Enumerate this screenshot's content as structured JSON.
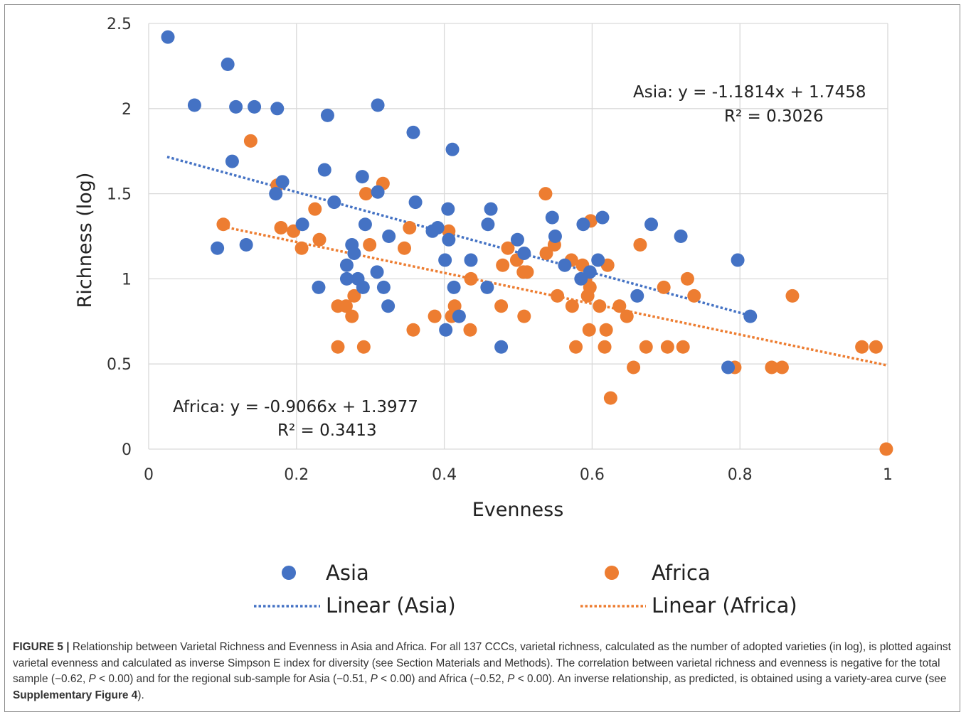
{
  "chart_data": {
    "type": "scatter",
    "xlabel": "Evenness",
    "ylabel": "Richness (log)",
    "xlim": [
      0,
      1
    ],
    "ylim": [
      0,
      2.5
    ],
    "x_ticks": [
      "0",
      "0.2",
      "0.4",
      "0.6",
      "0.8",
      "1"
    ],
    "y_ticks": [
      "0",
      "0.5",
      "1",
      "1.5",
      "2",
      "2.5"
    ],
    "grid": true,
    "legend_position": "bottom",
    "series": [
      {
        "name": "Asia",
        "color": "#4472C4",
        "points": [
          [
            0.026,
            2.42
          ],
          [
            0.062,
            2.02
          ],
          [
            0.107,
            2.26
          ],
          [
            0.118,
            2.01
          ],
          [
            0.143,
            2.01
          ],
          [
            0.174,
            2.0
          ],
          [
            0.242,
            1.96
          ],
          [
            0.31,
            2.02
          ],
          [
            0.358,
            1.86
          ],
          [
            0.411,
            1.76
          ],
          [
            0.113,
            1.69
          ],
          [
            0.238,
            1.64
          ],
          [
            0.181,
            1.57
          ],
          [
            0.172,
            1.5
          ],
          [
            0.289,
            1.6
          ],
          [
            0.31,
            1.51
          ],
          [
            0.251,
            1.45
          ],
          [
            0.361,
            1.45
          ],
          [
            0.405,
            1.41
          ],
          [
            0.463,
            1.41
          ],
          [
            0.208,
            1.32
          ],
          [
            0.293,
            1.32
          ],
          [
            0.384,
            1.28
          ],
          [
            0.391,
            1.3
          ],
          [
            0.325,
            1.25
          ],
          [
            0.406,
            1.23
          ],
          [
            0.459,
            1.32
          ],
          [
            0.546,
            1.36
          ],
          [
            0.588,
            1.32
          ],
          [
            0.614,
            1.36
          ],
          [
            0.68,
            1.32
          ],
          [
            0.72,
            1.25
          ],
          [
            0.093,
            1.18
          ],
          [
            0.132,
            1.2
          ],
          [
            0.275,
            1.2
          ],
          [
            0.278,
            1.15
          ],
          [
            0.268,
            1.08
          ],
          [
            0.401,
            1.11
          ],
          [
            0.436,
            1.11
          ],
          [
            0.499,
            1.23
          ],
          [
            0.508,
            1.15
          ],
          [
            0.55,
            1.25
          ],
          [
            0.563,
            1.08
          ],
          [
            0.608,
            1.11
          ],
          [
            0.268,
            1.0
          ],
          [
            0.283,
            1.0
          ],
          [
            0.309,
            1.04
          ],
          [
            0.23,
            0.95
          ],
          [
            0.29,
            0.95
          ],
          [
            0.318,
            0.95
          ],
          [
            0.324,
            0.84
          ],
          [
            0.413,
            0.95
          ],
          [
            0.458,
            0.95
          ],
          [
            0.585,
            1.0
          ],
          [
            0.597,
            1.04
          ],
          [
            0.661,
            0.9
          ],
          [
            0.42,
            0.78
          ],
          [
            0.402,
            0.7
          ],
          [
            0.477,
            0.6
          ],
          [
            0.797,
            1.11
          ],
          [
            0.814,
            0.78
          ],
          [
            0.784,
            0.48
          ]
        ],
        "trendline": {
          "name": "Linear (Asia)",
          "equation": "Asia:  y = -1.1814x + 1.7458",
          "r2": "R² = 0.3026",
          "slope": -1.1814,
          "intercept": 1.7458,
          "x_range": [
            0.025,
            0.81
          ]
        }
      },
      {
        "name": "Africa",
        "color": "#ED7D31",
        "points": [
          [
            0.138,
            1.81
          ],
          [
            0.174,
            1.55
          ],
          [
            0.317,
            1.56
          ],
          [
            0.294,
            1.5
          ],
          [
            0.225,
            1.41
          ],
          [
            0.101,
            1.32
          ],
          [
            0.179,
            1.3
          ],
          [
            0.196,
            1.28
          ],
          [
            0.231,
            1.23
          ],
          [
            0.353,
            1.3
          ],
          [
            0.406,
            1.28
          ],
          [
            0.537,
            1.5
          ],
          [
            0.598,
            1.34
          ],
          [
            0.207,
            1.18
          ],
          [
            0.299,
            1.2
          ],
          [
            0.346,
            1.18
          ],
          [
            0.486,
            1.18
          ],
          [
            0.498,
            1.11
          ],
          [
            0.538,
            1.15
          ],
          [
            0.549,
            1.2
          ],
          [
            0.665,
            1.2
          ],
          [
            0.479,
            1.08
          ],
          [
            0.507,
            1.04
          ],
          [
            0.512,
            1.04
          ],
          [
            0.572,
            1.11
          ],
          [
            0.587,
            1.08
          ],
          [
            0.621,
            1.08
          ],
          [
            0.436,
            1.0
          ],
          [
            0.591,
            1.0
          ],
          [
            0.597,
            0.95
          ],
          [
            0.697,
            0.95
          ],
          [
            0.729,
            1.0
          ],
          [
            0.594,
            0.9
          ],
          [
            0.553,
            0.9
          ],
          [
            0.738,
            0.9
          ],
          [
            0.871,
            0.9
          ],
          [
            0.256,
            0.84
          ],
          [
            0.267,
            0.84
          ],
          [
            0.278,
            0.9
          ],
          [
            0.275,
            0.78
          ],
          [
            0.41,
            0.78
          ],
          [
            0.414,
            0.84
          ],
          [
            0.387,
            0.78
          ],
          [
            0.477,
            0.84
          ],
          [
            0.508,
            0.78
          ],
          [
            0.573,
            0.84
          ],
          [
            0.61,
            0.84
          ],
          [
            0.637,
            0.84
          ],
          [
            0.647,
            0.78
          ],
          [
            0.358,
            0.7
          ],
          [
            0.435,
            0.7
          ],
          [
            0.596,
            0.7
          ],
          [
            0.619,
            0.7
          ],
          [
            0.256,
            0.6
          ],
          [
            0.291,
            0.6
          ],
          [
            0.578,
            0.6
          ],
          [
            0.617,
            0.6
          ],
          [
            0.673,
            0.6
          ],
          [
            0.702,
            0.6
          ],
          [
            0.723,
            0.6
          ],
          [
            0.656,
            0.48
          ],
          [
            0.793,
            0.48
          ],
          [
            0.843,
            0.48
          ],
          [
            0.857,
            0.48
          ],
          [
            0.965,
            0.6
          ],
          [
            0.984,
            0.6
          ],
          [
            0.625,
            0.3
          ],
          [
            0.998,
            0.0
          ]
        ],
        "trendline": {
          "name": "Linear (Africa)",
          "equation": "Africa:  y = -0.9066x + 1.3977",
          "r2": "R² = 0.3413",
          "slope": -0.9066,
          "intercept": 1.3977,
          "x_range": [
            0.1,
            1.0
          ]
        }
      }
    ]
  },
  "caption": {
    "label": "FIGURE 5 |",
    "text_1": " Relationship between Varietal Richness and Evenness in Asia and Africa. For all 137 CCCs, varietal richness, calculated as the number of adopted varieties (in log), is plotted against varietal evenness and calculated as inverse Simpson E index for diversity (see Section Materials and Methods). The correlation between varietal richness and evenness is negative for the total sample (−0.62, ",
    "p1": "P",
    "text_2": " < 0.00) and for the regional sub-sample for Asia (−0.51, ",
    "p2": "P",
    "text_3": " < 0.00) and Africa (−0.52, ",
    "p3": "P",
    "text_4": " < 0.00). An inverse relationship, as predicted, is obtained using a variety-area curve (see ",
    "ref": "Supplementary Figure 4",
    "text_5": ")."
  }
}
